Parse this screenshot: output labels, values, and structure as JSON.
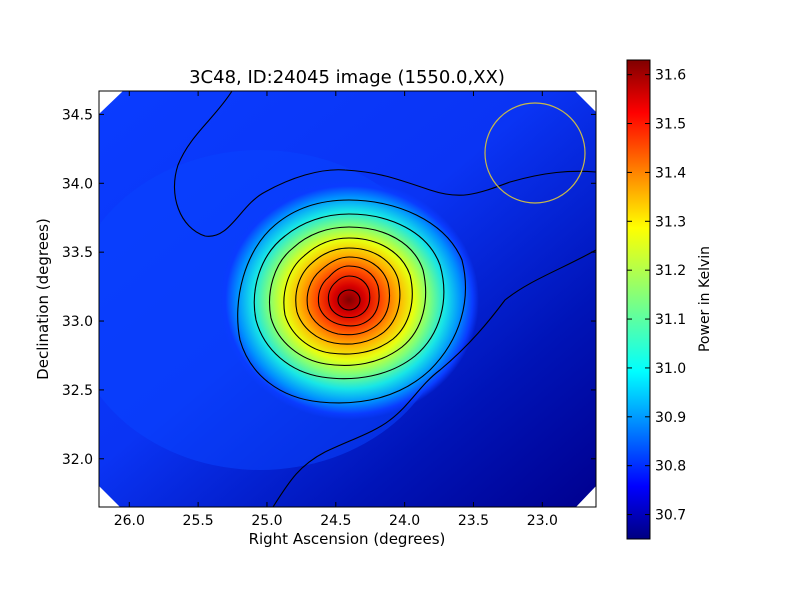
{
  "chart_data": {
    "type": "heatmap",
    "title": "3C48, ID:24045 image (1550.0,XX)",
    "xlabel": "Right Ascension (degrees)",
    "ylabel": "Declination (degrees)",
    "xlim": [
      26.22,
      22.61
    ],
    "ylim": [
      31.65,
      34.67
    ],
    "x_ticks": [
      26.0,
      25.5,
      25.0,
      24.5,
      24.0,
      23.5,
      23.0
    ],
    "x_tick_labels": [
      "26.0",
      "25.5",
      "25.0",
      "24.5",
      "24.0",
      "23.5",
      "23.0"
    ],
    "y_ticks": [
      32.0,
      32.5,
      33.0,
      33.5,
      34.0,
      34.5
    ],
    "y_tick_labels": [
      "32.0",
      "32.5",
      "33.0",
      "33.5",
      "34.0",
      "34.5"
    ],
    "colorbar": {
      "label": "Power in Kelvin",
      "range": [
        30.65,
        31.63
      ],
      "ticks": [
        30.7,
        30.8,
        30.9,
        31.0,
        31.1,
        31.2,
        31.3,
        31.4,
        31.5,
        31.6
      ],
      "tick_labels": [
        "30.7",
        "30.8",
        "30.9",
        "31.0",
        "31.1",
        "31.2",
        "31.3",
        "31.4",
        "31.5",
        "31.6"
      ],
      "colormap": "jet"
    },
    "peak": {
      "ra": 24.42,
      "dec": 33.15,
      "value": 31.62
    },
    "background_level": 30.78,
    "beam_circle": {
      "ra": 23.05,
      "dec": 34.23,
      "radius_deg": 0.36,
      "color": "#c8b84a"
    },
    "contour_color": "#000000",
    "grid": false
  }
}
